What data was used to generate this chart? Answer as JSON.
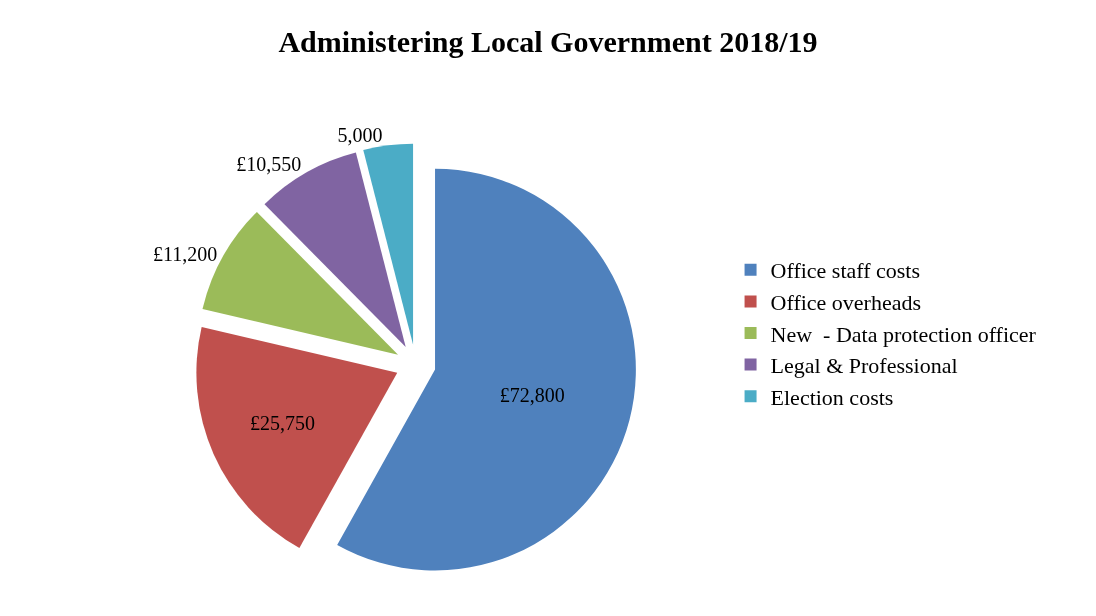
{
  "chart_data": {
    "type": "pie",
    "title": "Administering Local Government 2018/19",
    "categories": [
      "Office staff costs",
      "Office overheads",
      "New  - Data protection officer",
      "Legal & Professional",
      "Election costs"
    ],
    "values": [
      72800,
      25750,
      11200,
      10550,
      5000
    ],
    "value_labels": [
      "£72,800",
      "£25,750",
      "£11,200",
      "£10,550",
      "5,000"
    ],
    "colors": [
      "#4f81bd",
      "#c0504d",
      "#9bbb59",
      "#8064a2",
      "#4bacc6"
    ],
    "legend": "right"
  }
}
